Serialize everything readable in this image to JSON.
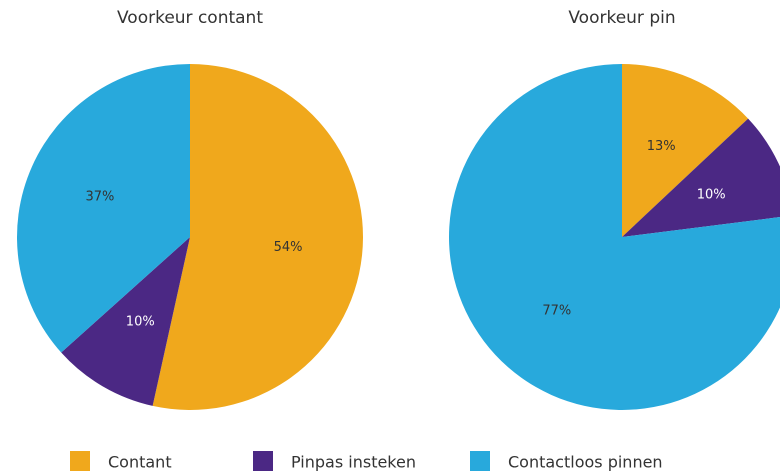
{
  "chart_data": [
    {
      "type": "pie",
      "title": "Voorkeur contant",
      "values": [
        54,
        10,
        37
      ],
      "value_labels": [
        "54%",
        "10%",
        "37%"
      ]
    },
    {
      "type": "pie",
      "title": "Voorkeur pin",
      "values": [
        13,
        10,
        77
      ],
      "value_labels": [
        "13%",
        "10%",
        "77%"
      ]
    }
  ],
  "legend": {
    "labels": [
      "Contant",
      "Pinpas insteken",
      "Contactloos pinnen"
    ],
    "colors": [
      "#f0a81c",
      "#4b2884",
      "#28a9dc"
    ],
    "text_colors": [
      "#333333",
      "#ffffff",
      "#333333"
    ]
  }
}
